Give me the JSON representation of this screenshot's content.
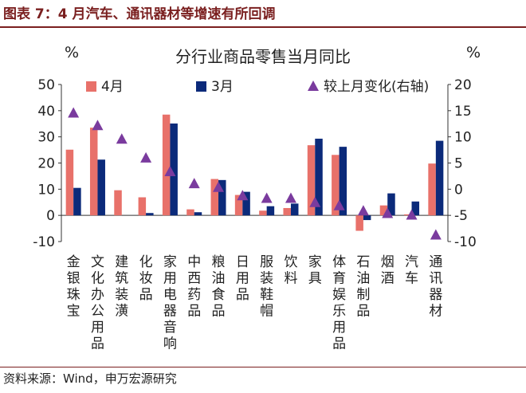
{
  "figure_title": "图表 7：4 月汽车、通讯器材等增速有所回调",
  "source_note": "资料来源：Wind，申万宏源研究",
  "colors": {
    "apr": "#e8716a",
    "mar": "#0b2a7a",
    "delta": "#7a3b9e",
    "brand": "#7a1f1f"
  },
  "chart_data": {
    "type": "bar",
    "title": "分行业商品零售当月同比",
    "left_unit": "%",
    "right_unit": "%",
    "ylim": [
      -10,
      50
    ],
    "yticks": [
      -10,
      0,
      10,
      20,
      30,
      40,
      50
    ],
    "y2lim": [
      -10,
      20
    ],
    "y2ticks": [
      -10,
      -5,
      0,
      5,
      10,
      15,
      20
    ],
    "legend_position": "top",
    "categories": [
      "金银珠宝",
      "文化办公用品",
      "建筑装潢",
      "化妆品",
      "家用电器音响",
      "中西药品",
      "粮油食品",
      "日用品",
      "服装鞋帽",
      "饮料",
      "家具",
      "体育娱乐用品",
      "石油制品",
      "烟酒",
      "汽车",
      "通讯器材"
    ],
    "series": [
      {
        "name": "4月",
        "kind": "bar",
        "axis": "left",
        "values": [
          25.1,
          33.5,
          9.6,
          6.9,
          38.5,
          2.3,
          13.9,
          7.8,
          1.8,
          2.8,
          26.8,
          23.1,
          -5.9,
          3.8,
          0.4,
          19.8
        ]
      },
      {
        "name": "3月",
        "kind": "bar",
        "axis": "left",
        "values": [
          10.5,
          21.3,
          0,
          0.9,
          35.1,
          1.2,
          13.5,
          9.0,
          3.5,
          4.5,
          29.3,
          26.2,
          -1.8,
          8.4,
          5.3,
          28.5
        ]
      },
      {
        "name": "较上月变化(右轴)",
        "kind": "triangle",
        "axis": "right",
        "values": [
          14.6,
          12.2,
          9.6,
          6.0,
          3.4,
          1.1,
          0.4,
          -1.2,
          -1.7,
          -1.7,
          -2.5,
          -3.1,
          -4.1,
          -4.6,
          -4.9,
          -8.7
        ]
      }
    ]
  }
}
